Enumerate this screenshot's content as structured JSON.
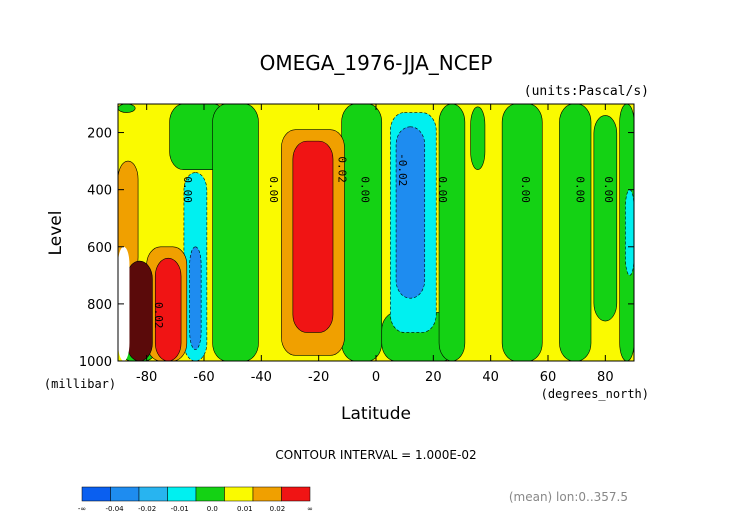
{
  "chart_data": {
    "type": "heatmap",
    "title": "OMEGA_1976-JJA_NCEP",
    "units_label": "(units:Pascal/s)",
    "xlabel": "Latitude",
    "x_units": "(degrees_north)",
    "ylabel": "Level",
    "y_units": "(millibar)",
    "xlim": [
      -90,
      90
    ],
    "ylim": [
      1000,
      100
    ],
    "x_ticks": [
      -80,
      -60,
      -40,
      -20,
      0,
      20,
      40,
      60,
      80
    ],
    "x_tick_labels": [
      "-80",
      "-60",
      "-40",
      "-20",
      "0",
      "20",
      "40",
      "60",
      "80"
    ],
    "y_ticks": [
      200,
      400,
      600,
      800,
      1000
    ],
    "y_tick_labels": [
      "200",
      "400",
      "600",
      "800",
      "1000"
    ],
    "contour_interval_text": "CONTOUR INTERVAL = 1.000E-02",
    "footer_text": "(mean) lon:0..357.5",
    "background_level": "yellow",
    "regions": [
      {
        "level": "green",
        "lat": [
          -72,
          -52
        ],
        "p": [
          100,
          330
        ]
      },
      {
        "level": "green",
        "lat": [
          -57,
          -41
        ],
        "p": [
          100,
          1000
        ]
      },
      {
        "level": "green",
        "lat": [
          -12,
          2
        ],
        "p": [
          100,
          1000
        ]
      },
      {
        "level": "green",
        "lat": [
          -90,
          -84
        ],
        "p": [
          100,
          130
        ]
      },
      {
        "level": "green",
        "lat": [
          2,
          28
        ],
        "p": [
          830,
          1000
        ]
      },
      {
        "level": "green",
        "lat": [
          22,
          31
        ],
        "p": [
          100,
          1000
        ]
      },
      {
        "level": "green",
        "lat": [
          33,
          38
        ],
        "p": [
          110,
          330
        ]
      },
      {
        "level": "green",
        "lat": [
          44,
          58
        ],
        "p": [
          100,
          1000
        ]
      },
      {
        "level": "green",
        "lat": [
          64,
          75
        ],
        "p": [
          100,
          1000
        ]
      },
      {
        "level": "green",
        "lat": [
          76,
          84
        ],
        "p": [
          140,
          860
        ]
      },
      {
        "level": "green",
        "lat": [
          85,
          90
        ],
        "p": [
          100,
          1000
        ]
      },
      {
        "level": "green",
        "lat": [
          -90,
          -76
        ],
        "p": [
          880,
          1000
        ]
      },
      {
        "level": "cyan",
        "lat": [
          -67,
          -59
        ],
        "p": [
          340,
          1000
        ]
      },
      {
        "level": "cyan",
        "lat": [
          5,
          21
        ],
        "p": [
          130,
          900
        ]
      },
      {
        "level": "cyan",
        "lat": [
          87,
          90
        ],
        "p": [
          400,
          700
        ]
      },
      {
        "level": "blue",
        "lat": [
          -65,
          -61
        ],
        "p": [
          600,
          960
        ]
      },
      {
        "level": "blue",
        "lat": [
          7,
          17
        ],
        "p": [
          180,
          780
        ]
      },
      {
        "level": "orange",
        "lat": [
          -90,
          -83
        ],
        "p": [
          300,
          700
        ]
      },
      {
        "level": "orange",
        "lat": [
          -80,
          -66
        ],
        "p": [
          600,
          1000
        ]
      },
      {
        "level": "orange",
        "lat": [
          -33,
          -11
        ],
        "p": [
          190,
          980
        ]
      },
      {
        "level": "red",
        "lat": [
          -77,
          -68
        ],
        "p": [
          640,
          1000
        ]
      },
      {
        "level": "red",
        "lat": [
          -29,
          -15
        ],
        "p": [
          230,
          900
        ]
      },
      {
        "level": "darkred",
        "lat": [
          -87,
          -78
        ],
        "p": [
          650,
          1000
        ]
      },
      {
        "level": "white",
        "lat": [
          -90,
          -86
        ],
        "p": [
          600,
          1000
        ]
      }
    ],
    "contour_labels": [
      {
        "text": "0.00",
        "lat": -66,
        "p": 400
      },
      {
        "text": "0.00",
        "lat": -36,
        "p": 400
      },
      {
        "text": "0.02",
        "lat": -12,
        "p": 330
      },
      {
        "text": "0.00",
        "lat": -4,
        "p": 400
      },
      {
        "text": "-0.02",
        "lat": 9,
        "p": 330
      },
      {
        "text": "0.00",
        "lat": 23,
        "p": 400
      },
      {
        "text": "0.00",
        "lat": 52,
        "p": 400
      },
      {
        "text": "0.00",
        "lat": 71,
        "p": 400
      },
      {
        "text": "0.00",
        "lat": 81,
        "p": 400
      },
      {
        "text": "0.02",
        "lat": -76,
        "p": 840
      }
    ],
    "colorbar": {
      "colors": [
        "#0a5ff0",
        "#1e8cf0",
        "#28b4f0",
        "#00f0f0",
        "#14d214",
        "#fafa00",
        "#f0a000",
        "#f01414"
      ],
      "labels": [
        "-∞",
        "-0.04",
        "-0.02",
        "-0.01",
        "0.0",
        "0.01",
        "0.02",
        "∞"
      ]
    },
    "level_colors": {
      "yellow": "#fafa00",
      "green": "#14d214",
      "cyan": "#00f0f0",
      "blue": "#1e8cf0",
      "orange": "#f0a000",
      "red": "#f01414",
      "darkred": "#5a0a0a",
      "white": "#ffffff"
    }
  }
}
